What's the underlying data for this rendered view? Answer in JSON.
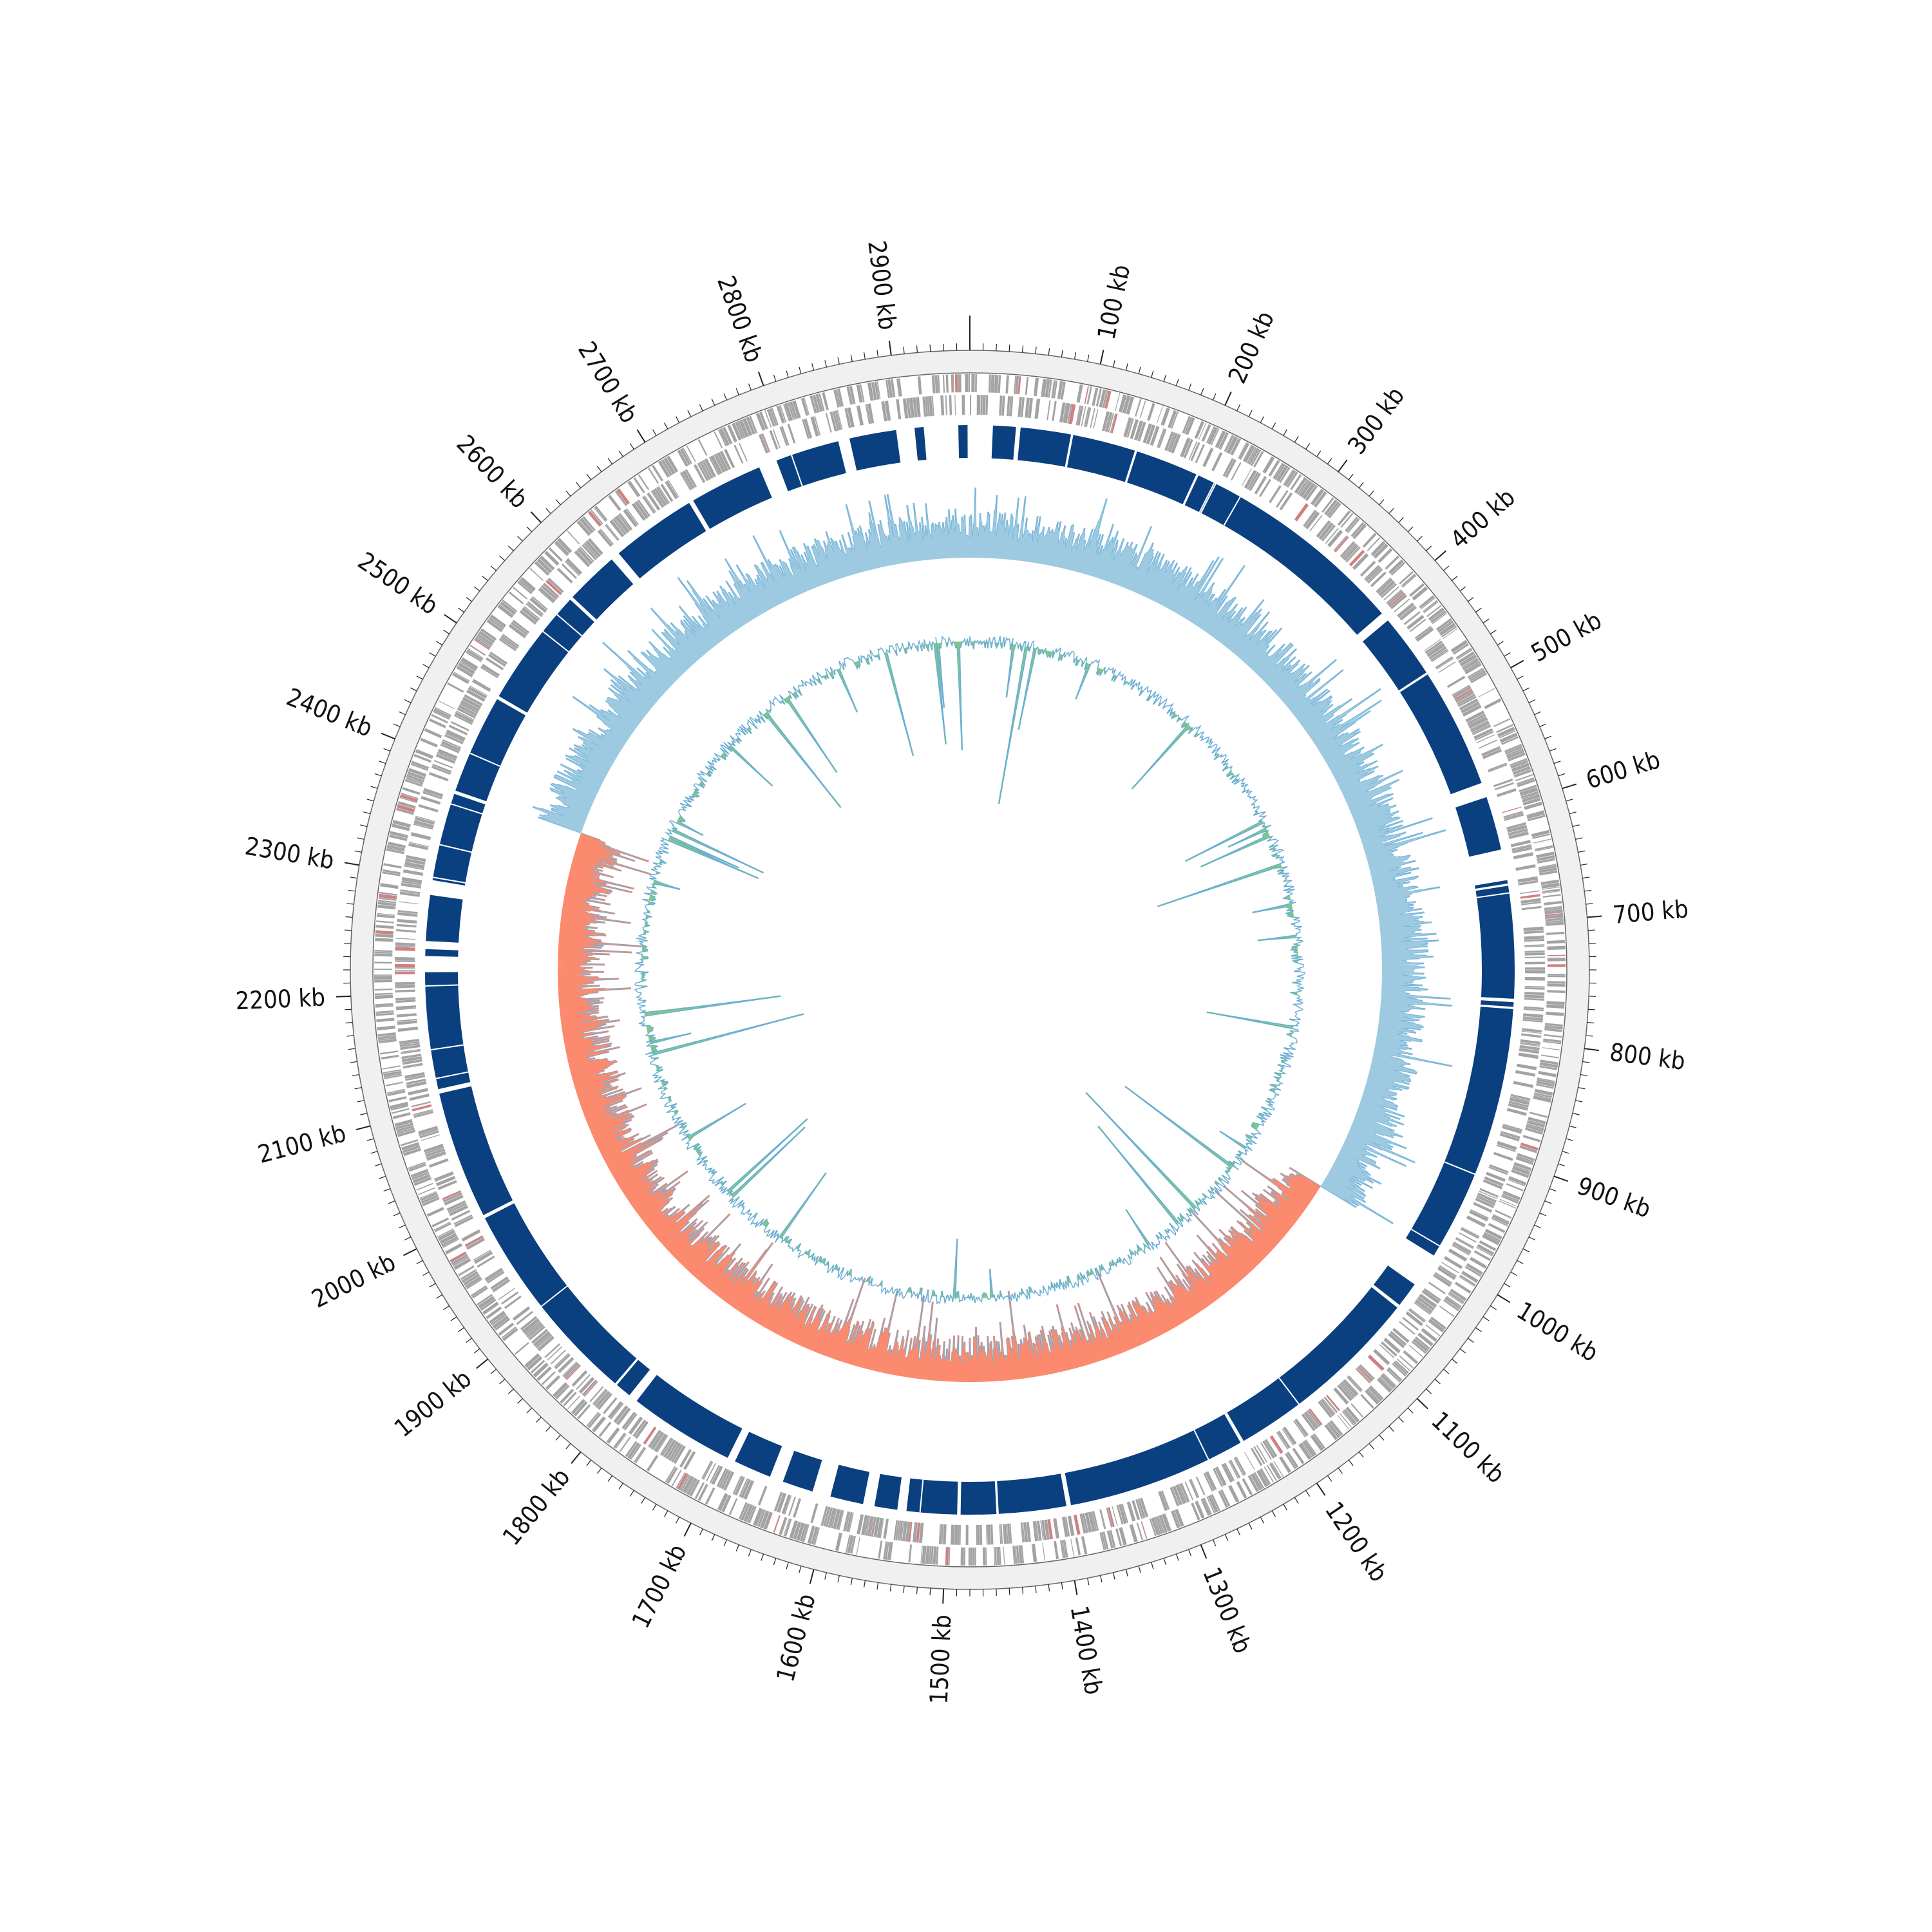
{
  "genome": {
    "length_kb": 2960,
    "major_tick_step_kb": 100,
    "minor_tick_step_kb": 10,
    "tick_labels": [
      "100 kb",
      "200 kb",
      "300 kb",
      "400 kb",
      "500 kb",
      "600 kb",
      "700 kb",
      "800 kb",
      "900 kb",
      "1000 kb",
      "1100 kb",
      "1200 kb",
      "1300 kb",
      "1400 kb",
      "1500 kb",
      "1600 kb",
      "1700 kb",
      "1800 kb",
      "1900 kb",
      "2000 kb",
      "2100 kb",
      "2200 kb",
      "2300 kb",
      "2400 kb",
      "2500 kb",
      "2600 kb",
      "2700 kb",
      "2800 kb",
      "2900 kb"
    ]
  },
  "colors": {
    "outer_band": "#f0f0f0",
    "outline": "#666666",
    "tick": "#222222",
    "cds": "#a3a3a3",
    "cds_rna": "#d08080",
    "contigs": "#0a4080",
    "skew_positive": "#9ecae1",
    "skew_negative": "#fb8a6e",
    "skew_line": "#6baed6",
    "gc_fill": "#7fc97f",
    "gc_line": "#6baed6"
  },
  "contig_gaps_kb": [
    [
      2896,
      2912
    ],
    [
      2920,
      2950
    ],
    [
      2958,
      20
    ],
    [
      40,
      44
    ],
    [
      88,
      90
    ],
    [
      145,
      147
    ],
    [
      202,
      204
    ],
    [
      404,
      412
    ],
    [
      468,
      470
    ],
    [
      575,
      588
    ],
    [
      635,
      662
    ],
    [
      665,
      667
    ],
    [
      765,
      768
    ],
    [
      772,
      774
    ],
    [
      1000,
      1030
    ],
    [
      1052,
      1055
    ],
    [
      1232,
      1235
    ],
    [
      1392,
      1396
    ],
    [
      1455,
      1457
    ],
    [
      1488,
      1491
    ],
    [
      1535,
      1543
    ],
    [
      1563,
      1573
    ],
    [
      1602,
      1618
    ],
    [
      1645,
      1657
    ],
    [
      1690,
      1697
    ],
    [
      1790,
      1798
    ],
    [
      1812,
      1814
    ],
    [
      1997,
      2000
    ],
    [
      2112,
      2116
    ],
    [
      2218,
      2232
    ],
    [
      2238,
      2245
    ],
    [
      2285,
      2298
    ],
    [
      2375,
      2378
    ],
    [
      2465,
      2468
    ],
    [
      2572,
      2575
    ],
    [
      2622,
      2630
    ],
    [
      2705,
      2709
    ],
    [
      2773,
      2789
    ],
    [
      2845,
      2855
    ]
  ],
  "gc_skew_sign_switch_kb": [
    1000,
    2380
  ]
}
